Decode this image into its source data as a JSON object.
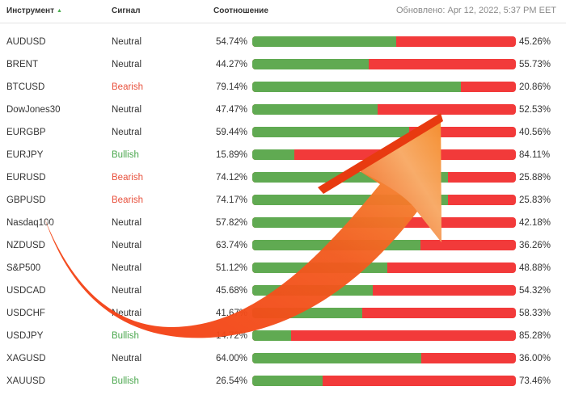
{
  "header": {
    "instrument": "Инструмент",
    "signal": "Сигнал",
    "ratio": "Соотношение",
    "updated": "Обновлено: Apr 12, 2022, 5:37 PM EET",
    "sort_icon": "triangle-up-icon"
  },
  "colors": {
    "long": "#60aa52",
    "short": "#f23a3a",
    "bearish": "#e8513d",
    "bullish": "#4ba74e",
    "arrow": "#f05a14"
  },
  "rows": [
    {
      "instrument": "AUDUSD",
      "signal": "Neutral",
      "signal_type": "neutral",
      "long_pct": "54.74%",
      "short_pct": "45.26%",
      "long_value": 54.74
    },
    {
      "instrument": "BRENT",
      "signal": "Neutral",
      "signal_type": "neutral",
      "long_pct": "44.27%",
      "short_pct": "55.73%",
      "long_value": 44.27
    },
    {
      "instrument": "BTCUSD",
      "signal": "Bearish",
      "signal_type": "bearish",
      "long_pct": "79.14%",
      "short_pct": "20.86%",
      "long_value": 79.14
    },
    {
      "instrument": "DowJones30",
      "signal": "Neutral",
      "signal_type": "neutral",
      "long_pct": "47.47%",
      "short_pct": "52.53%",
      "long_value": 47.47
    },
    {
      "instrument": "EURGBP",
      "signal": "Neutral",
      "signal_type": "neutral",
      "long_pct": "59.44%",
      "short_pct": "40.56%",
      "long_value": 59.44
    },
    {
      "instrument": "EURJPY",
      "signal": "Bullish",
      "signal_type": "bullish",
      "long_pct": "15.89%",
      "short_pct": "84.11%",
      "long_value": 15.89
    },
    {
      "instrument": "EURUSD",
      "signal": "Bearish",
      "signal_type": "bearish",
      "long_pct": "74.12%",
      "short_pct": "25.88%",
      "long_value": 74.12
    },
    {
      "instrument": "GBPUSD",
      "signal": "Bearish",
      "signal_type": "bearish",
      "long_pct": "74.17%",
      "short_pct": "25.83%",
      "long_value": 74.17
    },
    {
      "instrument": "Nasdaq100",
      "signal": "Neutral",
      "signal_type": "neutral",
      "long_pct": "57.82%",
      "short_pct": "42.18%",
      "long_value": 57.82
    },
    {
      "instrument": "NZDUSD",
      "signal": "Neutral",
      "signal_type": "neutral",
      "long_pct": "63.74%",
      "short_pct": "36.26%",
      "long_value": 63.74
    },
    {
      "instrument": "S&P500",
      "signal": "Neutral",
      "signal_type": "neutral",
      "long_pct": "51.12%",
      "short_pct": "48.88%",
      "long_value": 51.12
    },
    {
      "instrument": "USDCAD",
      "signal": "Neutral",
      "signal_type": "neutral",
      "long_pct": "45.68%",
      "short_pct": "54.32%",
      "long_value": 45.68
    },
    {
      "instrument": "USDCHF",
      "signal": "Neutral",
      "signal_type": "neutral",
      "long_pct": "41.67%",
      "short_pct": "58.33%",
      "long_value": 41.67
    },
    {
      "instrument": "USDJPY",
      "signal": "Bullish",
      "signal_type": "bullish",
      "long_pct": "14.72%",
      "short_pct": "85.28%",
      "long_value": 14.72
    },
    {
      "instrument": "XAGUSD",
      "signal": "Neutral",
      "signal_type": "neutral",
      "long_pct": "64.00%",
      "short_pct": "36.00%",
      "long_value": 64.0
    },
    {
      "instrument": "XAUUSD",
      "signal": "Bullish",
      "signal_type": "bullish",
      "long_pct": "26.54%",
      "short_pct": "73.46%",
      "long_value": 26.54
    }
  ]
}
